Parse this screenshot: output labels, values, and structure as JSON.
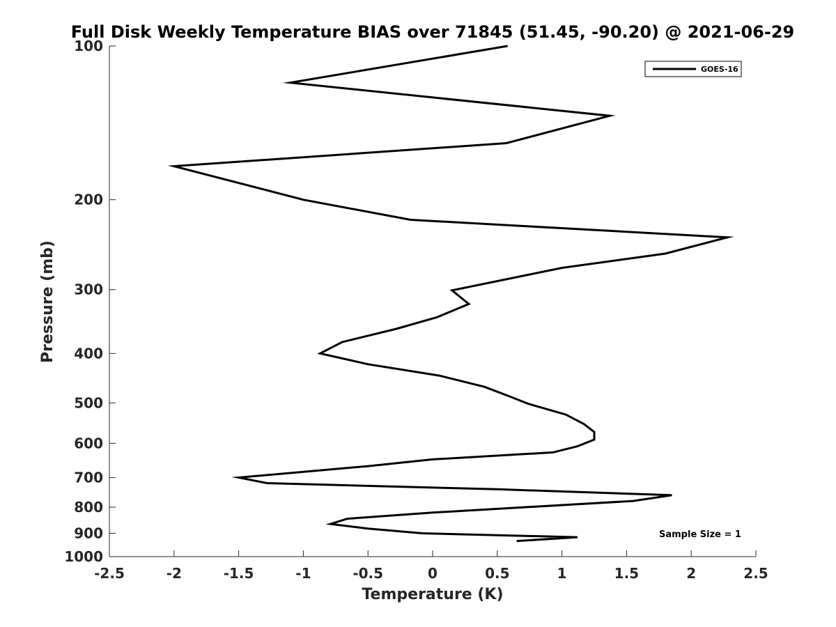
{
  "chart_data": {
    "type": "line",
    "title": "Full Disk Weekly Temperature BIAS over 71845 (51.45, -90.20) @ 2021-06-29",
    "xlabel": "Temperature (K)",
    "ylabel": "Pressure (mb)",
    "xlim": [
      -2.5,
      2.5
    ],
    "ylim": [
      100,
      1000
    ],
    "y_scale": "log",
    "y_reversed": true,
    "x_ticks": [
      -2.5,
      -2,
      -1.5,
      -1,
      -0.5,
      0,
      0.5,
      1,
      1.5,
      2,
      2.5
    ],
    "x_tick_labels": [
      "-2.5",
      "-2",
      "-1.5",
      "-1",
      "-0.5",
      "0",
      "0.5",
      "1",
      "1.5",
      "2",
      "2.5"
    ],
    "y_ticks": [
      100,
      200,
      300,
      400,
      500,
      600,
      700,
      800,
      900,
      1000
    ],
    "y_tick_labels": [
      "100",
      "200",
      "300",
      "400",
      "500",
      "600",
      "700",
      "800",
      "900",
      "1000"
    ],
    "grid": false,
    "legend": {
      "placement": "top-right",
      "entries": [
        "GOES-16"
      ]
    },
    "annotations": [
      {
        "text": "Sample Size = 1",
        "placement": "bottom-right"
      }
    ],
    "series": [
      {
        "name": "GOES-16",
        "color": "#000000",
        "points": [
          {
            "t": 0.58,
            "p": 100
          },
          {
            "t": -1.1,
            "p": 118
          },
          {
            "t": 1.37,
            "p": 137
          },
          {
            "t": 0.57,
            "p": 155
          },
          {
            "t": -2.0,
            "p": 172
          },
          {
            "t": -1.0,
            "p": 200
          },
          {
            "t": -0.17,
            "p": 219
          },
          {
            "t": 2.28,
            "p": 237
          },
          {
            "t": 1.8,
            "p": 255
          },
          {
            "t": 1.0,
            "p": 272
          },
          {
            "t": 0.15,
            "p": 301
          },
          {
            "t": 0.28,
            "p": 320
          },
          {
            "t": 0.03,
            "p": 340
          },
          {
            "t": -0.28,
            "p": 358
          },
          {
            "t": -0.7,
            "p": 380
          },
          {
            "t": -0.87,
            "p": 400
          },
          {
            "t": -0.5,
            "p": 420
          },
          {
            "t": 0.05,
            "p": 442
          },
          {
            "t": 0.4,
            "p": 465
          },
          {
            "t": 0.59,
            "p": 485
          },
          {
            "t": 0.74,
            "p": 502
          },
          {
            "t": 1.03,
            "p": 527
          },
          {
            "t": 1.17,
            "p": 550
          },
          {
            "t": 1.25,
            "p": 570
          },
          {
            "t": 1.25,
            "p": 590
          },
          {
            "t": 1.12,
            "p": 608
          },
          {
            "t": 0.93,
            "p": 625
          },
          {
            "t": 0.0,
            "p": 645
          },
          {
            "t": -0.5,
            "p": 665
          },
          {
            "t": -1.5,
            "p": 700
          },
          {
            "t": -1.28,
            "p": 718
          },
          {
            "t": 0.5,
            "p": 738
          },
          {
            "t": 1.85,
            "p": 758
          },
          {
            "t": 1.55,
            "p": 778
          },
          {
            "t": 0.0,
            "p": 820
          },
          {
            "t": -0.66,
            "p": 843
          },
          {
            "t": -0.79,
            "p": 863
          },
          {
            "t": -0.5,
            "p": 881
          },
          {
            "t": -0.08,
            "p": 900
          },
          {
            "t": 1.12,
            "p": 916
          },
          {
            "t": 0.65,
            "p": 932
          }
        ]
      }
    ]
  }
}
